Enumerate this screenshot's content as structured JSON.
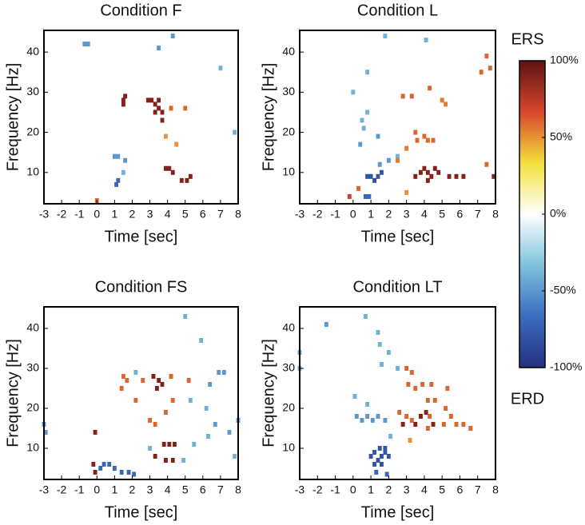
{
  "chart_data": [
    {
      "type": "heatmap",
      "title": "Condition F",
      "xlabel": "Time [sec]",
      "ylabel": "Frequency [Hz]",
      "xlim": [
        -3,
        8
      ],
      "ylim": [
        2.2,
        45.4
      ],
      "xticks": [
        -3,
        -2,
        -1,
        0,
        1,
        2,
        3,
        4,
        5,
        6,
        7,
        8
      ],
      "yticks": [
        10,
        20,
        30,
        40
      ],
      "cells": {
        "x": [
          -0.7,
          -0.5,
          4.3,
          3.5,
          7,
          1.5,
          1.5,
          1.6,
          2.9,
          3.1,
          3.3,
          3.5,
          3.5,
          3.7,
          3.7,
          3.3,
          4.2,
          5,
          3.9,
          4.5,
          1,
          1.2,
          1.6,
          1.1,
          1.2,
          3.9,
          4.1,
          4.3,
          5.1,
          5.3,
          4.8,
          7.8,
          1.5,
          0
        ],
        "y": [
          42,
          42,
          44,
          41,
          36,
          28,
          27,
          29,
          28,
          28,
          27,
          26,
          28,
          25,
          23,
          25,
          26,
          26,
          19,
          17,
          14,
          14,
          13,
          7,
          8,
          11,
          11,
          10,
          8,
          9,
          8,
          20,
          10,
          3
        ],
        "values": [
          -50,
          -50,
          -50,
          -50,
          -40,
          90,
          90,
          90,
          90,
          90,
          90,
          90,
          90,
          90,
          90,
          90,
          60,
          60,
          50,
          50,
          -50,
          -50,
          -50,
          -70,
          -70,
          90,
          90,
          90,
          90,
          90,
          90,
          -40,
          -40,
          60
        ]
      }
    },
    {
      "type": "heatmap",
      "title": "Condition L",
      "xlabel": "Time [sec]",
      "ylabel": "Frequency [Hz]",
      "xlim": [
        -3,
        8
      ],
      "ylim": [
        2.2,
        45.4
      ],
      "xticks": [
        -3,
        -2,
        -1,
        0,
        1,
        2,
        3,
        4,
        5,
        6,
        7,
        8
      ],
      "yticks": [
        10,
        20,
        30,
        40
      ],
      "cells": {
        "x": [
          1.8,
          4.1,
          0.8,
          0,
          0.8,
          0.5,
          0.6,
          1.4,
          0.4,
          2.5,
          2,
          1.5,
          0.8,
          1,
          1.2,
          1.4,
          1.6,
          0.7,
          0.9,
          2.8,
          3.3,
          4.3,
          5,
          5.2,
          7.5,
          7.2,
          7.7,
          4,
          4.2,
          3.6,
          3.5,
          4.5,
          3,
          2.5,
          0.3,
          -0.2,
          3,
          7.5,
          3.8,
          4,
          4.2,
          4.4,
          4.6,
          4.8,
          3.5,
          5.4,
          5.8,
          6.2,
          7.9,
          4.2
        ],
        "y": [
          44,
          43,
          35,
          30,
          25,
          23,
          21,
          19,
          17,
          14,
          13,
          12,
          9,
          9,
          8,
          9,
          10,
          4,
          4,
          29,
          29,
          31,
          28,
          27,
          39,
          35,
          36,
          19,
          18,
          18,
          20,
          18,
          16,
          13,
          6,
          4,
          5,
          12,
          10,
          11,
          10,
          9,
          11,
          10,
          9,
          9,
          9,
          9,
          9,
          8
        ],
        "values": [
          -40,
          -40,
          -40,
          -40,
          -40,
          -40,
          -40,
          -50,
          -50,
          -40,
          -50,
          -50,
          -80,
          -80,
          -80,
          -80,
          -80,
          -70,
          -70,
          60,
          60,
          60,
          55,
          55,
          60,
          60,
          60,
          60,
          60,
          60,
          60,
          60,
          55,
          55,
          60,
          70,
          50,
          60,
          90,
          90,
          90,
          90,
          90,
          90,
          90,
          90,
          90,
          90,
          90,
          90
        ]
      }
    },
    {
      "type": "heatmap",
      "title": "Condition FS",
      "xlabel": "Time [sec]",
      "ylabel": "Frequency [Hz]",
      "xlim": [
        -3,
        8
      ],
      "ylim": [
        2.2,
        45.4
      ],
      "xticks": [
        -3,
        -2,
        -1,
        0,
        1,
        2,
        3,
        4,
        5,
        6,
        7,
        8
      ],
      "yticks": [
        10,
        20,
        30,
        40
      ],
      "cells": {
        "x": [
          -3,
          -2.9,
          5,
          5.9,
          2.2,
          6.4,
          6.9,
          7.2,
          5.3,
          6.2,
          8,
          6.7,
          7.5,
          6.3,
          5.5,
          4.9,
          7.8,
          3,
          0.2,
          0.4,
          0.7,
          1,
          1.4,
          1.8,
          2.1,
          -0.1,
          -0.2,
          -0.1,
          3.2,
          3.5,
          3.7,
          3.4,
          3.8,
          4.1,
          4.4,
          3.3,
          3.9,
          4.3,
          1.5,
          1.7,
          2.2,
          3,
          3.3,
          3.9,
          4.3,
          4.2,
          5.2,
          1.4,
          2.6
        ],
        "y": [
          16,
          14,
          43,
          37,
          29,
          26,
          29,
          29,
          22,
          20,
          17,
          16,
          14,
          13,
          11,
          7,
          8,
          10,
          5,
          6,
          6,
          5,
          4,
          4,
          3.5,
          14,
          6,
          4,
          28,
          27,
          26,
          25,
          11,
          11,
          11,
          8,
          7,
          7,
          28,
          27,
          22,
          17,
          16,
          19,
          22,
          28,
          27,
          25,
          27
        ],
        "values": [
          -50,
          -50,
          -40,
          -40,
          -40,
          -50,
          -50,
          -50,
          -40,
          -40,
          -50,
          -50,
          -50,
          -40,
          -40,
          -40,
          -40,
          -40,
          -70,
          -70,
          -70,
          -70,
          -70,
          -70,
          -70,
          90,
          90,
          90,
          90,
          90,
          90,
          90,
          90,
          90,
          90,
          90,
          90,
          90,
          60,
          60,
          60,
          60,
          60,
          60,
          60,
          60,
          60,
          60,
          60
        ]
      }
    },
    {
      "type": "heatmap",
      "title": "Condition LT",
      "xlabel": "Time [sec]",
      "ylabel": "Frequency [Hz]",
      "xlim": [
        -3,
        8
      ],
      "ylim": [
        2.2,
        45.4
      ],
      "xticks": [
        -3,
        -2,
        -1,
        0,
        1,
        2,
        3,
        4,
        5,
        6,
        7,
        8
      ],
      "yticks": [
        10,
        20,
        30,
        40
      ],
      "cells": {
        "x": [
          -1.5,
          0.7,
          1.4,
          1.5,
          2,
          1.6,
          2.5,
          -3,
          -3,
          0.1,
          0.8,
          0.2,
          0.5,
          0.8,
          1.1,
          1.4,
          1.8,
          2.1,
          1,
          1.2,
          1.4,
          1.6,
          1.8,
          1.2,
          1.6,
          2,
          1.5,
          1.8,
          1.3,
          1.9,
          3,
          3.3,
          3.1,
          3.5,
          3.9,
          4.4,
          5.3,
          4.2,
          4.6,
          2.6,
          3,
          3.3,
          4.3,
          5.2,
          5.5,
          5.8,
          6.6,
          6.2,
          4.2,
          5.1,
          3.2,
          3.8,
          4.1,
          2.8,
          3.5,
          4.5
        ],
        "y": [
          41,
          43,
          39,
          36,
          34,
          31,
          30,
          34,
          30,
          23,
          21,
          18,
          17,
          18,
          17,
          18,
          17,
          13,
          8,
          9,
          7,
          8,
          9,
          6,
          6,
          8,
          10,
          10,
          4,
          3.5,
          30,
          29,
          26,
          25,
          26,
          26,
          25,
          22,
          22,
          19,
          18,
          17,
          18,
          20,
          18,
          16,
          15,
          16,
          15,
          16,
          12,
          18,
          19,
          16,
          16,
          16
        ],
        "values": [
          -50,
          -40,
          -40,
          -40,
          -40,
          -40,
          -40,
          -40,
          -40,
          -40,
          -40,
          -50,
          -50,
          -50,
          -50,
          -50,
          -50,
          -40,
          -80,
          -80,
          -80,
          -80,
          -80,
          -80,
          -80,
          -80,
          -80,
          -80,
          -70,
          -70,
          60,
          60,
          60,
          60,
          60,
          60,
          60,
          60,
          60,
          60,
          60,
          60,
          60,
          60,
          60,
          60,
          60,
          60,
          60,
          60,
          50,
          90,
          90,
          90,
          90,
          90
        ]
      }
    }
  ],
  "colorbar": {
    "label_top": "ERS",
    "label_bottom": "ERD",
    "clim": [
      -100,
      100
    ],
    "colormap": [
      "#25307e",
      "#3a6cbf",
      "#7ec3dd",
      "#ffffff",
      "#f3e03c",
      "#d9452b",
      "#5c1313"
    ],
    "ticks": [
      {
        "value": 100,
        "label": "100%"
      },
      {
        "value": 50,
        "label": "50%"
      },
      {
        "value": 0,
        "label": "0%"
      },
      {
        "value": -50,
        "label": "-50%"
      },
      {
        "value": -100,
        "label": "-100%"
      }
    ]
  }
}
